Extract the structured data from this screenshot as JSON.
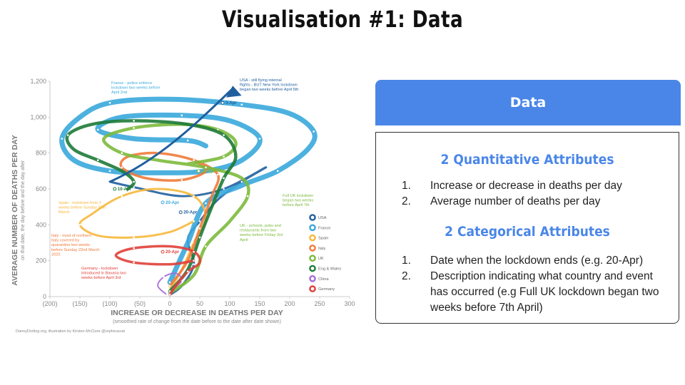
{
  "slide": {
    "title": "Visualisation #1: Data"
  },
  "chart_data": {
    "type": "line",
    "xlabel": "INCREASE OR DECREASE IN DEATHS PER DAY",
    "xlabel_sub": "(smoothed rate of change from the date before to the date after date shown)",
    "ylabel": "AVERAGE NUMBER OF DEATHS PER DAY",
    "ylabel_sub": "on that date, the day before and the day after",
    "x_ticks": [
      "(200)",
      "(150)",
      "(100)",
      "(50)",
      "0",
      "50",
      "100",
      "150",
      "200",
      "250",
      "300"
    ],
    "y_ticks": [
      "0",
      "200",
      "400",
      "600",
      "800",
      "1,000",
      "1,200"
    ],
    "xlim": [
      -200,
      300
    ],
    "ylim": [
      0,
      1200
    ],
    "grid": false,
    "legend_position": "right",
    "credit": "DannyDorling.org, illustration by Kirsten McClure @orpheuscat",
    "series": [
      {
        "name": "USA",
        "color": "#1f5f9e",
        "points": [
          [
            0,
            10
          ],
          [
            20,
            60
          ],
          [
            40,
            180
          ],
          [
            30,
            320
          ],
          [
            50,
            420
          ],
          [
            80,
            540
          ],
          [
            120,
            640
          ],
          [
            160,
            720
          ],
          [
            90,
            600
          ],
          [
            20,
            560
          ],
          [
            -60,
            610
          ],
          [
            -100,
            640
          ]
        ]
      },
      {
        "name": "France",
        "color": "#3aa8dc",
        "points": [
          [
            0,
            80
          ],
          [
            30,
            300
          ],
          [
            60,
            520
          ],
          [
            120,
            620
          ],
          [
            180,
            700
          ],
          [
            230,
            820
          ],
          [
            240,
            920
          ],
          [
            200,
            1020
          ],
          [
            120,
            1070
          ],
          [
            0,
            1100
          ],
          [
            -100,
            1080
          ],
          [
            -150,
            1000
          ],
          [
            -180,
            880
          ],
          [
            -160,
            760
          ],
          [
            -100,
            700
          ],
          [
            -20,
            690
          ],
          [
            60,
            700
          ],
          [
            120,
            760
          ],
          [
            150,
            880
          ],
          [
            100,
            980
          ],
          [
            20,
            1010
          ],
          [
            -80,
            1000
          ],
          [
            -120,
            930
          ],
          [
            -60,
            880
          ],
          [
            30,
            870
          ],
          [
            60,
            840
          ]
        ]
      },
      {
        "name": "Spain",
        "color": "#f6b83c",
        "points": [
          [
            0,
            40
          ],
          [
            20,
            150
          ],
          [
            40,
            300
          ],
          [
            60,
            440
          ],
          [
            40,
            560
          ],
          [
            -20,
            600
          ],
          [
            -80,
            560
          ],
          [
            -130,
            460
          ],
          [
            -150,
            400
          ],
          [
            -120,
            340
          ],
          [
            -60,
            330
          ],
          [
            0,
            360
          ],
          [
            40,
            420
          ]
        ]
      },
      {
        "name": "Italy",
        "color": "#f07a3a",
        "points": [
          [
            0,
            60
          ],
          [
            30,
            200
          ],
          [
            50,
            380
          ],
          [
            70,
            560
          ],
          [
            80,
            680
          ],
          [
            40,
            760
          ],
          [
            -20,
            800
          ],
          [
            -70,
            780
          ],
          [
            -80,
            720
          ],
          [
            -40,
            660
          ],
          [
            20,
            650
          ],
          [
            60,
            700
          ],
          [
            40,
            760
          ]
        ]
      },
      {
        "name": "UK",
        "color": "#7cba3c",
        "points": [
          [
            0,
            20
          ],
          [
            40,
            120
          ],
          [
            60,
            280
          ],
          [
            100,
            420
          ],
          [
            130,
            560
          ],
          [
            120,
            660
          ],
          [
            60,
            720
          ],
          [
            -20,
            760
          ],
          [
            -80,
            800
          ],
          [
            -110,
            880
          ],
          [
            -60,
            940
          ],
          [
            20,
            960
          ],
          [
            80,
            930
          ],
          [
            110,
            860
          ],
          [
            90,
            780
          ],
          [
            30,
            740
          ]
        ]
      },
      {
        "name": "Eng & Wales",
        "color": "#1e7a37",
        "points": [
          [
            0,
            30
          ],
          [
            30,
            150
          ],
          [
            50,
            330
          ],
          [
            70,
            500
          ],
          [
            90,
            660
          ],
          [
            110,
            780
          ],
          [
            90,
            900
          ],
          [
            30,
            960
          ],
          [
            -60,
            980
          ],
          [
            -130,
            960
          ],
          [
            -170,
            900
          ],
          [
            -160,
            820
          ],
          [
            -120,
            760
          ],
          [
            -80,
            700
          ],
          [
            -60,
            640
          ],
          [
            -70,
            600
          ]
        ]
      },
      {
        "name": "China",
        "color": "#a46bd6",
        "points": [
          [
            -5,
            10
          ],
          [
            -20,
            60
          ],
          [
            -10,
            110
          ],
          [
            10,
            130
          ],
          [
            20,
            90
          ],
          [
            5,
            40
          ]
        ]
      },
      {
        "name": "Germany",
        "color": "#e0403a",
        "points": [
          [
            0,
            10
          ],
          [
            10,
            60
          ],
          [
            30,
            140
          ],
          [
            50,
            190
          ],
          [
            40,
            250
          ],
          [
            0,
            280
          ],
          [
            -60,
            270
          ],
          [
            -90,
            230
          ],
          [
            -60,
            190
          ],
          [
            0,
            180
          ],
          [
            40,
            200
          ]
        ]
      }
    ],
    "date_labels": [
      {
        "text": "3-Apr",
        "x": 100,
        "y": 1080,
        "color": "#1f5f9e"
      },
      {
        "text": "10-Apr",
        "x": -80,
        "y": 600,
        "color": "#1e7a37"
      },
      {
        "text": "20-Apr",
        "x": 0,
        "y": 525,
        "color": "#3aa8dc"
      },
      {
        "text": "20-Apr",
        "x": 30,
        "y": 470,
        "color": "#1f5f9e"
      },
      {
        "text": "20-Apr",
        "x": 0,
        "y": 250,
        "color": "#e0403a"
      },
      {
        "text": "20-Apr",
        "x": 60,
        "y": 700,
        "color": "#7cba3c"
      }
    ],
    "annotations": [
      {
        "text": "France - police enforce lockdown two weeks before April 2nd",
        "color": "#3aa8dc"
      },
      {
        "text": "USA - still flying internal flights - BUT New York lockdown began two weeks before April 5th",
        "color": "#1f5f9e"
      },
      {
        "text": "Full UK lockdown began two weeks before April 7th",
        "color": "#7cba3c"
      },
      {
        "text": "Spain - lockdown from 2 weeks before Sunday 29th March",
        "color": "#f6b83c"
      },
      {
        "text": "UK - schools, pubs and restaurants from two weeks before Friday 3rd April",
        "color": "#7cba3c"
      },
      {
        "text": "Italy - most of northern Italy covered by quarantine two weeks before Sunday 22nd March 2020",
        "color": "#f07a3a"
      },
      {
        "text": "Germany - lockdown introduced in Bavaria two weeks before April 3rd",
        "color": "#e0403a"
      }
    ]
  },
  "panel": {
    "header": "Data",
    "quant_title": "2 Quantitative Attributes",
    "quant_items": [
      {
        "num": "1.",
        "text": "Increase or decrease in deaths per day"
      },
      {
        "num": "2.",
        "text": "Average number of deaths per day"
      }
    ],
    "cat_title": "2 Categorical Attributes",
    "cat_items": [
      {
        "num": "1.",
        "text": "Date when the lockdown ends (e.g. 20-Apr)"
      },
      {
        "num": "2.",
        "text": "Description indicating what country and event has occurred (e.g Full UK lockdown began two weeks before 7th April)"
      }
    ]
  }
}
